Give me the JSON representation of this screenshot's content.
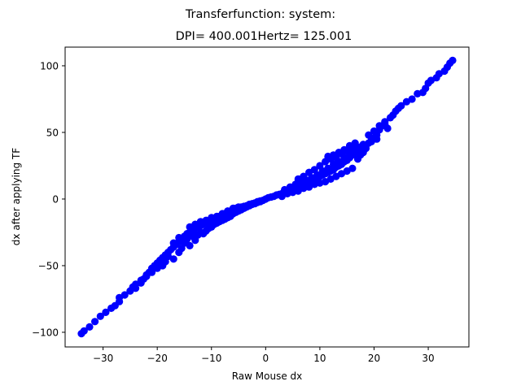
{
  "chart_data": {
    "type": "scatter",
    "title": "Transferfunction: system:",
    "subtitle": "DPI= 400.001Hertz= 125.001",
    "xlabel": "Raw Mouse dx",
    "ylabel": "dx after applying TF",
    "xlim": [
      -37,
      37.5
    ],
    "ylim": [
      -111,
      114
    ],
    "xticks": [
      -30,
      -20,
      -10,
      0,
      10,
      20,
      30
    ],
    "yticks": [
      -100,
      -50,
      0,
      50,
      100
    ],
    "xtick_labels": [
      "−30",
      "−20",
      "−10",
      "0",
      "10",
      "20",
      "30"
    ],
    "ytick_labels": [
      "−100",
      "−50",
      "0",
      "50",
      "100"
    ],
    "grid": false,
    "marker_color": "#0000ff",
    "series": [
      {
        "points": [
          [
            -34,
            -101
          ],
          [
            -33.5,
            -99
          ],
          [
            -32.5,
            -96
          ],
          [
            -31.5,
            -92
          ],
          [
            -30.5,
            -88
          ],
          [
            -29.5,
            -85
          ],
          [
            -28.5,
            -82
          ],
          [
            -27.8,
            -80
          ],
          [
            -27,
            -77
          ],
          [
            -27,
            -74
          ],
          [
            -26,
            -72
          ],
          [
            -25,
            -69
          ],
          [
            -24.5,
            -66
          ],
          [
            -24,
            -67
          ],
          [
            -23,
            -63
          ],
          [
            -22.5,
            -60
          ],
          [
            -22,
            -57
          ],
          [
            -21.5,
            -55
          ],
          [
            -21,
            -52
          ],
          [
            -20.5,
            -50
          ],
          [
            -20,
            -48
          ],
          [
            -19.5,
            -46
          ],
          [
            -19,
            -44
          ],
          [
            -18.5,
            -42
          ],
          [
            -18,
            -40
          ],
          [
            -17.5,
            -38
          ],
          [
            -17,
            -36
          ],
          [
            -16.5,
            -34
          ],
          [
            -16,
            -32
          ],
          [
            -15.5,
            -30
          ],
          [
            -15,
            -28
          ],
          [
            -14.5,
            -26
          ],
          [
            -14,
            -25
          ],
          [
            -13.5,
            -24
          ],
          [
            -13,
            -22
          ],
          [
            -12.5,
            -21
          ],
          [
            -12,
            -20
          ],
          [
            -11.5,
            -19
          ],
          [
            -11,
            -18
          ],
          [
            -10.5,
            -17
          ],
          [
            -10,
            -16
          ],
          [
            -9.5,
            -15
          ],
          [
            -9,
            -14
          ],
          [
            -8.5,
            -13
          ],
          [
            -8,
            -12
          ],
          [
            -7.5,
            -11
          ],
          [
            -7,
            -10
          ],
          [
            -6.5,
            -9
          ],
          [
            -6,
            -8
          ],
          [
            -5.5,
            -7
          ],
          [
            -5,
            -6.5
          ],
          [
            -4.5,
            -6
          ],
          [
            -4,
            -5.5
          ],
          [
            -3.5,
            -5
          ],
          [
            -3,
            -4
          ],
          [
            -2.5,
            -3.5
          ],
          [
            -2,
            -3
          ],
          [
            -1.5,
            -2.5
          ],
          [
            -1,
            -2
          ],
          [
            -0.5,
            -1
          ],
          [
            0,
            0
          ],
          [
            -15,
            -33
          ],
          [
            -14.5,
            -30
          ],
          [
            -14,
            -35
          ],
          [
            -13.5,
            -28
          ],
          [
            -13,
            -31
          ],
          [
            -12.5,
            -27
          ],
          [
            -12,
            -25
          ],
          [
            -11.5,
            -26
          ],
          [
            -11,
            -24
          ],
          [
            -10.5,
            -22
          ],
          [
            -10,
            -21
          ],
          [
            -9.5,
            -19
          ],
          [
            -9,
            -18
          ],
          [
            -8.5,
            -17
          ],
          [
            -8,
            -16
          ],
          [
            -7.5,
            -15
          ],
          [
            -7,
            -14
          ],
          [
            -6.5,
            -13
          ],
          [
            -6,
            -11
          ],
          [
            -5.5,
            -10
          ],
          [
            -5,
            -9
          ],
          [
            -4.5,
            -8
          ],
          [
            -4,
            -7
          ],
          [
            -3.5,
            -6
          ],
          [
            -3,
            -5
          ],
          [
            -2.5,
            -4
          ],
          [
            -2,
            -3.5
          ],
          [
            -1.5,
            -2
          ],
          [
            -1,
            -1.5
          ],
          [
            -14,
            -21
          ],
          [
            -13,
            -19
          ],
          [
            -12,
            -17
          ],
          [
            -11,
            -16
          ],
          [
            -10,
            -14
          ],
          [
            -9,
            -13
          ],
          [
            -8,
            -11
          ],
          [
            -7,
            -9
          ],
          [
            -6,
            -7
          ],
          [
            -5,
            -6
          ],
          [
            -16,
            -29
          ],
          [
            -17,
            -33
          ],
          [
            -15.5,
            -37
          ],
          [
            -16,
            -40
          ],
          [
            -18,
            -43
          ],
          [
            -17,
            -45
          ],
          [
            -18.5,
            -47
          ],
          [
            -19,
            -50
          ],
          [
            -20,
            -52
          ],
          [
            -21,
            -55
          ],
          [
            -22,
            -58
          ],
          [
            -23,
            -61
          ],
          [
            -24,
            -64
          ],
          [
            0.5,
            1
          ],
          [
            1,
            1.5
          ],
          [
            1.5,
            2
          ],
          [
            2,
            3
          ],
          [
            2.5,
            3.5
          ],
          [
            3,
            4
          ],
          [
            3.5,
            5
          ],
          [
            4,
            5.5
          ],
          [
            4.5,
            6
          ],
          [
            5,
            7
          ],
          [
            5.5,
            8
          ],
          [
            6,
            9
          ],
          [
            6.5,
            10
          ],
          [
            7,
            11
          ],
          [
            7.5,
            12
          ],
          [
            8,
            13
          ],
          [
            8.5,
            14
          ],
          [
            9,
            15
          ],
          [
            9.5,
            16
          ],
          [
            10,
            17
          ],
          [
            10.5,
            18
          ],
          [
            11,
            19
          ],
          [
            11.5,
            20
          ],
          [
            12,
            21
          ],
          [
            12.5,
            22
          ],
          [
            13,
            24
          ],
          [
            13.5,
            25
          ],
          [
            14,
            26
          ],
          [
            14.5,
            28
          ],
          [
            15,
            29
          ],
          [
            15.5,
            31
          ],
          [
            16,
            33
          ],
          [
            16.5,
            35
          ],
          [
            17,
            37
          ],
          [
            17.5,
            39
          ],
          [
            18,
            41
          ],
          [
            3,
            2
          ],
          [
            4,
            4
          ],
          [
            5,
            5
          ],
          [
            6,
            6
          ],
          [
            7,
            8
          ],
          [
            8,
            9
          ],
          [
            9,
            11
          ],
          [
            10,
            12
          ],
          [
            11,
            13
          ],
          [
            12,
            15
          ],
          [
            13,
            17
          ],
          [
            14,
            19
          ],
          [
            15,
            21
          ],
          [
            16,
            23
          ],
          [
            3.5,
            7
          ],
          [
            4.5,
            9
          ],
          [
            5.5,
            11
          ],
          [
            6.5,
            13
          ],
          [
            7.5,
            14
          ],
          [
            8.5,
            16
          ],
          [
            9.5,
            18
          ],
          [
            10.5,
            21
          ],
          [
            11.5,
            23
          ],
          [
            12.5,
            26
          ],
          [
            13.5,
            28
          ],
          [
            14.5,
            31
          ],
          [
            15.5,
            34
          ],
          [
            16.5,
            36
          ],
          [
            17.5,
            33
          ],
          [
            16,
            38
          ],
          [
            15,
            36
          ],
          [
            14,
            34
          ],
          [
            13,
            31
          ],
          [
            12,
            30
          ],
          [
            11,
            28
          ],
          [
            10,
            25
          ],
          [
            9,
            22
          ],
          [
            8,
            20
          ],
          [
            7,
            17
          ],
          [
            6,
            15
          ],
          [
            11.5,
            32
          ],
          [
            12.5,
            33
          ],
          [
            13.5,
            35
          ],
          [
            14.5,
            37
          ],
          [
            15.5,
            40
          ],
          [
            16.5,
            42
          ],
          [
            17,
            30
          ],
          [
            18,
            35
          ],
          [
            18.5,
            38
          ],
          [
            19,
            42
          ],
          [
            19.5,
            44
          ],
          [
            20,
            46
          ],
          [
            20.5,
            48
          ],
          [
            21,
            52
          ],
          [
            21.5,
            55
          ],
          [
            22,
            58
          ],
          [
            23,
            61
          ],
          [
            23.5,
            63
          ],
          [
            24,
            66
          ],
          [
            24.5,
            68
          ],
          [
            25,
            70
          ],
          [
            26,
            73
          ],
          [
            27,
            75
          ],
          [
            28,
            79
          ],
          [
            29,
            80
          ],
          [
            29.5,
            83
          ],
          [
            30,
            87
          ],
          [
            30.5,
            89
          ],
          [
            31.5,
            91
          ],
          [
            32,
            94
          ],
          [
            33,
            96
          ],
          [
            33.5,
            99
          ],
          [
            34,
            102
          ],
          [
            34.5,
            104
          ],
          [
            19,
            48
          ],
          [
            20,
            51
          ],
          [
            21,
            55
          ],
          [
            22,
            56
          ],
          [
            22.5,
            53
          ],
          [
            20.5,
            45
          ],
          [
            19.5,
            43
          ]
        ]
      }
    ]
  }
}
